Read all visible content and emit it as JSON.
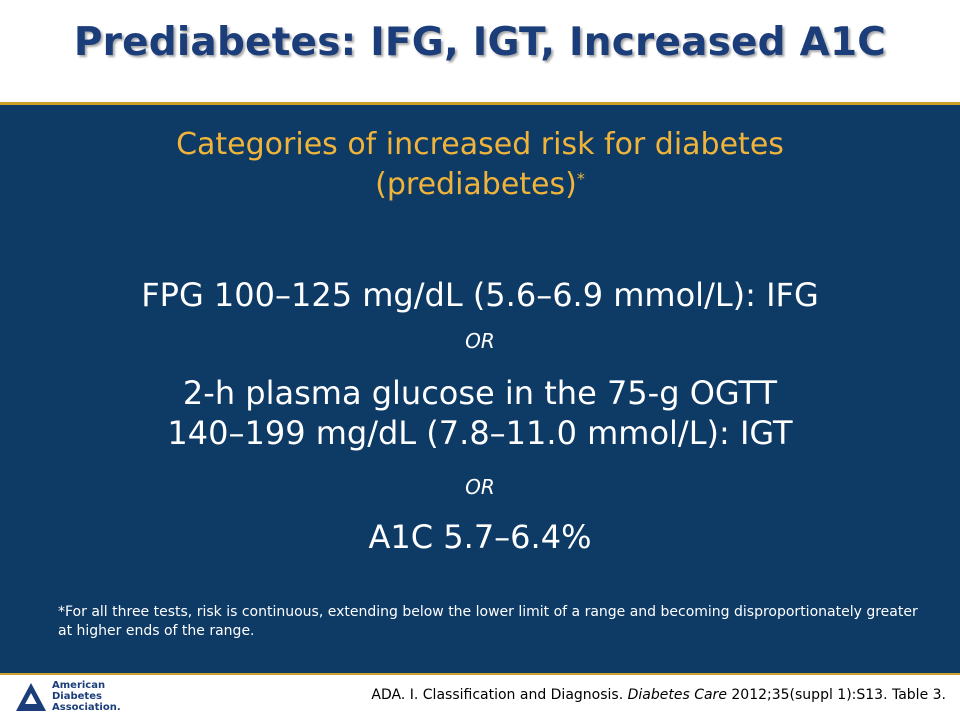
{
  "slide": {
    "title": "Prediabetes: IFG, IGT, Increased A1C",
    "subtitle_line1": "Categories of increased risk for diabetes",
    "subtitle_line2": "(prediabetes)",
    "subtitle_mark": "*",
    "criteria": {
      "fpg": "FPG 100–125 mg/dL (5.6–6.9 mmol/L): IFG",
      "or1": "OR",
      "ogtt_line1": "2-h plasma glucose in the 75-g OGTT",
      "ogtt_line2": "140–199 mg/dL (7.8–11.0 mmol/L): IGT",
      "or2": "OR",
      "a1c": "A1C 5.7–6.4%"
    },
    "footnote": "*For all three tests, risk is continuous, extending below the lower limit of a range and becoming disproportionately greater at higher ends of the range."
  },
  "footer": {
    "logo_line1": "American",
    "logo_line2": "Diabetes",
    "logo_line3": "Association.",
    "citation_pre": "ADA. I. Classification and Diagnosis. ",
    "citation_journal": "Diabetes Care",
    "citation_post": " 2012;35(suppl 1):S13. Table 3."
  },
  "colors": {
    "background": "#0e3a66",
    "title": "#1b3d7a",
    "subtitle": "#f0b43a",
    "rule": "#c9a227"
  }
}
